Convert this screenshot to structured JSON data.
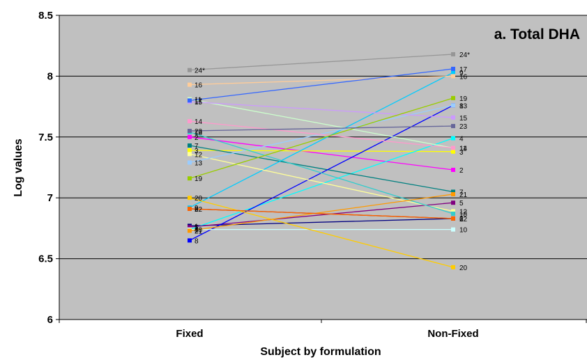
{
  "chart_data": {
    "type": "line",
    "title": "a. Total DHA",
    "xlabel": "Subject by formulation",
    "ylabel": "Log values",
    "categories": [
      "Fixed",
      "Non-Fixed"
    ],
    "ylim": [
      6,
      8.5
    ],
    "yticks": [
      "6",
      "6.5",
      "7",
      "7.5",
      "8",
      "8.5"
    ],
    "grid": true,
    "legend": "none",
    "series": [
      {
        "name": "1",
        "values": [
          6.77,
          6.83
        ],
        "color": "#000080"
      },
      {
        "name": "2",
        "values": [
          7.5,
          7.23
        ],
        "color": "#ff00ff"
      },
      {
        "name": "3",
        "values": [
          7.39,
          7.38
        ],
        "color": "#ffff00"
      },
      {
        "name": "4",
        "values": [
          6.74,
          7.49
        ],
        "color": "#00ffff"
      },
      {
        "name": "5",
        "values": [
          6.76,
          6.96
        ],
        "color": "#800080"
      },
      {
        "name": "6",
        "values": [
          6.91,
          6.83
        ],
        "color": "#800000"
      },
      {
        "name": "7",
        "values": [
          7.43,
          7.05
        ],
        "color": "#008080"
      },
      {
        "name": "8",
        "values": [
          6.65,
          7.76
        ],
        "color": "#0000ff"
      },
      {
        "name": "9",
        "values": [
          6.92,
          8.03
        ],
        "color": "#00ccff"
      },
      {
        "name": "10",
        "values": [
          6.74,
          6.74
        ],
        "color": "#ccffff"
      },
      {
        "name": "11",
        "values": [
          7.81,
          7.41
        ],
        "color": "#ccffcc"
      },
      {
        "name": "12",
        "values": [
          7.36,
          6.89
        ],
        "color": "#ffff99"
      },
      {
        "name": "13",
        "values": [
          7.29,
          7.76
        ],
        "color": "#99ccff"
      },
      {
        "name": "14",
        "values": [
          7.63,
          7.41
        ],
        "color": "#ff99cc"
      },
      {
        "name": "15",
        "values": [
          7.79,
          7.66
        ],
        "color": "#cc99ff"
      },
      {
        "name": "16",
        "values": [
          7.93,
          8.0
        ],
        "color": "#ffcc99"
      },
      {
        "name": "17",
        "values": [
          7.8,
          8.06
        ],
        "color": "#3366ff"
      },
      {
        "name": "18",
        "values": [
          7.54,
          6.87
        ],
        "color": "#33cccc"
      },
      {
        "name": "19",
        "values": [
          7.16,
          7.82
        ],
        "color": "#99cc00"
      },
      {
        "name": "20",
        "values": [
          7.0,
          6.43
        ],
        "color": "#ffcc00"
      },
      {
        "name": "21",
        "values": [
          6.73,
          7.03
        ],
        "color": "#ff9900"
      },
      {
        "name": "22",
        "values": [
          6.91,
          6.83
        ],
        "color": "#ff6600"
      },
      {
        "name": "23",
        "values": [
          7.55,
          7.59
        ],
        "color": "#666699"
      },
      {
        "name": "24*",
        "values": [
          8.05,
          8.18
        ],
        "color": "#969696"
      }
    ]
  }
}
